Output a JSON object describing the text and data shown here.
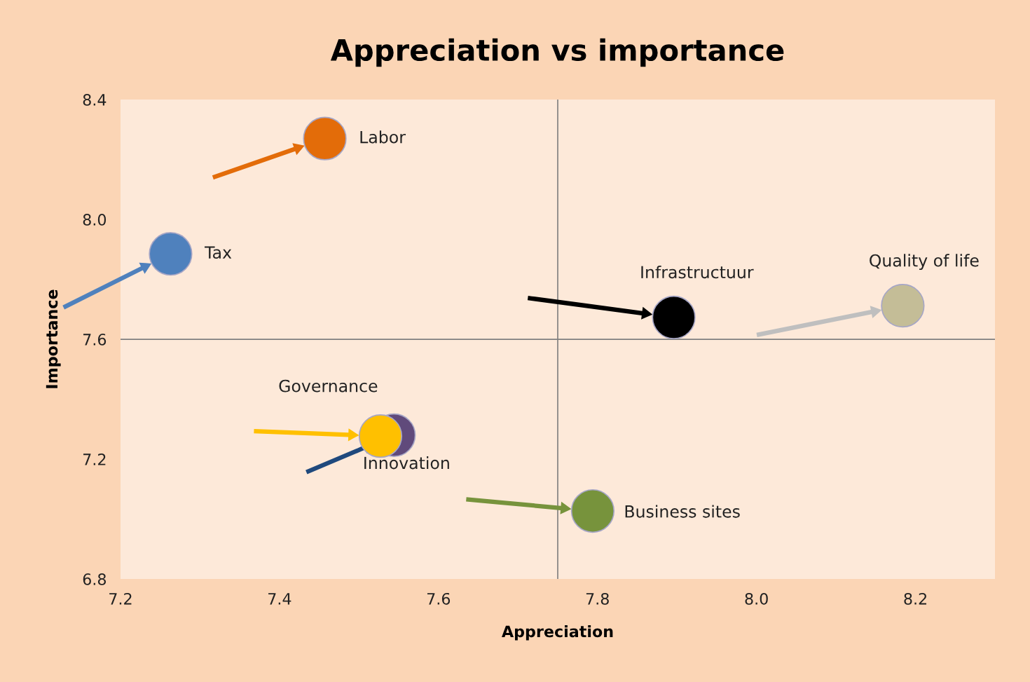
{
  "chart_data": {
    "type": "scatter",
    "title": "Appreciation vs importance",
    "xlabel": "Appreciation",
    "ylabel": "Importance",
    "xlim": [
      7.2,
      8.3
    ],
    "xticks": [
      {
        "value": 7.2,
        "label": "7.2"
      },
      {
        "value": 7.4,
        "label": "7.4"
      },
      {
        "value": 7.6,
        "label": "7.6"
      },
      {
        "value": 7.8,
        "label": "7.8"
      },
      {
        "value": 8.0,
        "label": "8.0"
      },
      {
        "value": 8.2,
        "label": "8.2"
      }
    ],
    "ylim": [
      6.8,
      8.4
    ],
    "yticks": [
      {
        "value": 6.8,
        "label": "6.8"
      },
      {
        "value": 7.2,
        "label": "7.2"
      },
      {
        "value": 7.6,
        "label": "7.6"
      },
      {
        "value": 8.0,
        "label": "8.0"
      },
      {
        "value": 8.4,
        "label": "8.4"
      }
    ],
    "grid": false,
    "marker": "circle",
    "legend": false,
    "ref_lines": [
      {
        "axis": "x",
        "value": 7.75,
        "color": "#7f7f7f"
      },
      {
        "axis": "y",
        "value": 7.6,
        "color": "#7f7f7f"
      }
    ],
    "series": [
      {
        "name": "Labor",
        "color": "#e36c09",
        "x": [
          7.457
        ],
        "values": [
          8.27
        ]
      },
      {
        "name": "Tax",
        "color": "#4f81bd",
        "x": [
          7.263
        ],
        "values": [
          7.885
        ]
      },
      {
        "name": "Infrastructuur",
        "color": "#000000",
        "x": [
          7.896
        ],
        "values": [
          7.673
        ]
      },
      {
        "name": "Quality of life",
        "color": "#c4bd97",
        "x": [
          8.184
        ],
        "values": [
          7.712
        ]
      },
      {
        "name": "Innovation",
        "color": "#604a7b",
        "x": [
          7.544
        ],
        "values": [
          7.28
        ]
      },
      {
        "name": "Governance",
        "color": "#ffc000",
        "x": [
          7.527
        ],
        "values": [
          7.277
        ]
      },
      {
        "name": "Business sites",
        "color": "#77933c",
        "x": [
          7.794
        ],
        "values": [
          7.027
        ]
      }
    ]
  }
}
